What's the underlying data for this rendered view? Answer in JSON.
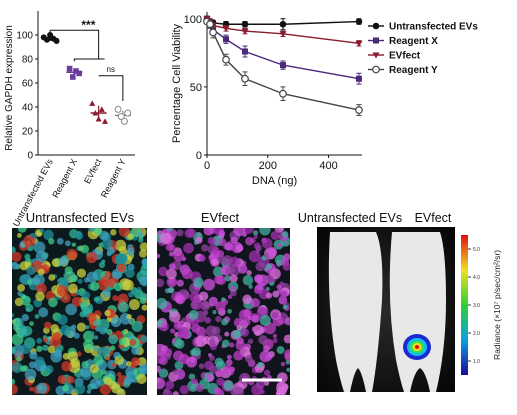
{
  "chart_data": [
    {
      "type": "dotplot",
      "ylabel": "Relative GAPDH expression",
      "categories": [
        "Untransfected EVs",
        "Reagent X",
        "EVfect",
        "Reagent Y"
      ],
      "colors": [
        "#111111",
        "#6a3d9a",
        "#8b1a2b",
        "#888888"
      ],
      "points": [
        [
          98,
          96,
          100,
          97,
          95
        ],
        [
          72,
          65,
          70,
          68
        ],
        [
          43,
          35,
          30,
          38,
          28
        ],
        [
          38,
          32,
          28,
          35
        ]
      ],
      "means": [
        97,
        69,
        35,
        33
      ],
      "errors": [
        2,
        3,
        6,
        4
      ],
      "ylim": [
        0,
        120
      ],
      "yticks": [
        0,
        20,
        40,
        60,
        80,
        100
      ],
      "annotations": [
        "***",
        "ns"
      ]
    },
    {
      "type": "line",
      "ylabel": "Percentage Cell Viability",
      "xlabel": "DNA (ng)",
      "x": [
        0,
        10,
        20,
        62.5,
        125,
        250,
        500
      ],
      "xlim": [
        0,
        510
      ],
      "xticks": [
        0,
        200,
        400
      ],
      "ylim": [
        0,
        105
      ],
      "yticks": [
        0,
        50,
        100
      ],
      "series": [
        {
          "name": "Untransfected EVs",
          "color": "#111111",
          "marker": "circle",
          "values": [
            100,
            98,
            97,
            96,
            96,
            96,
            98
          ],
          "errors": [
            2,
            2,
            2,
            2,
            2,
            4,
            2
          ]
        },
        {
          "name": "Reagent X",
          "color": "#4b2a7a",
          "marker": "square",
          "values": [
            100,
            97,
            92,
            85,
            76,
            66,
            56
          ],
          "errors": [
            2,
            2,
            3,
            3,
            4,
            3,
            4
          ]
        },
        {
          "name": "EVfect",
          "color": "#8b1a2b",
          "marker": "triangle",
          "values": [
            100,
            98,
            95,
            93,
            91,
            89,
            82
          ],
          "errors": [
            2,
            2,
            2,
            2,
            2,
            2,
            2
          ]
        },
        {
          "name": "Reagent Y",
          "color": "#444444",
          "marker": "open",
          "values": [
            98,
            96,
            90,
            70,
            56,
            45,
            33
          ],
          "errors": [
            2,
            3,
            4,
            4,
            5,
            5,
            4
          ]
        }
      ],
      "legend": "right"
    }
  ],
  "panels": {
    "titles": [
      "Untransfected EVs",
      "EVfect",
      "Untransfected EVs",
      "EVfect"
    ],
    "colorbar": {
      "label": "Radiance (×10⁷ p/sec/cm²/sr)",
      "ticks": [
        {
          "value": 5,
          "label": "5.0"
        },
        {
          "value": 4,
          "label": "4.0"
        },
        {
          "value": 3,
          "label": "3.0"
        },
        {
          "value": 2,
          "label": "2.0"
        },
        {
          "value": 1,
          "label": "1.0"
        }
      ],
      "lim": [
        0.5,
        5.5
      ]
    }
  }
}
